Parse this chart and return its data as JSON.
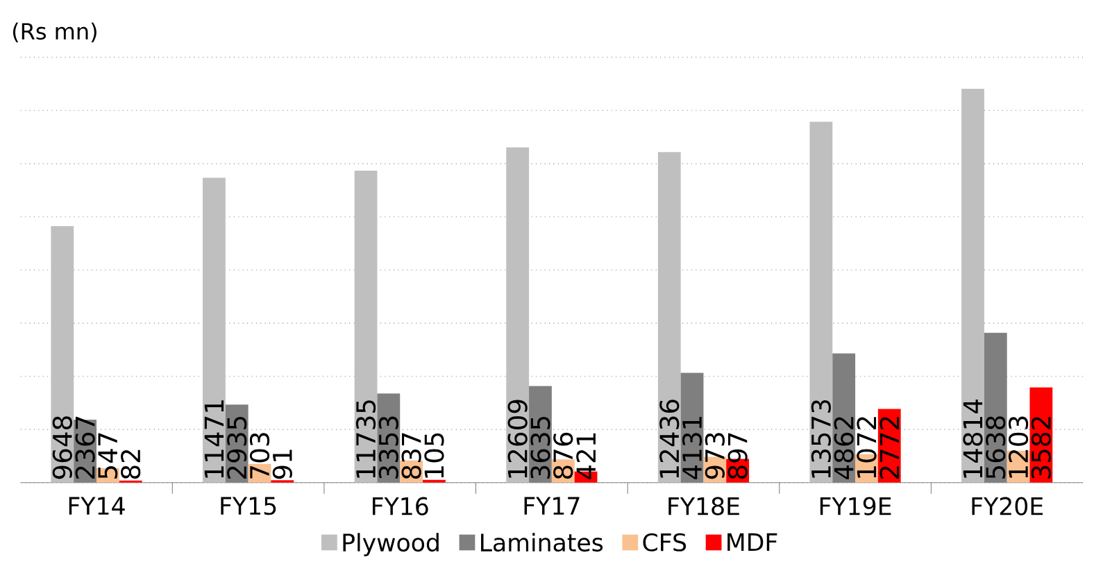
{
  "chart_data": {
    "type": "bar",
    "ylabel": "(Rs mn)",
    "categories": [
      "FY14",
      "FY15",
      "FY16",
      "FY17",
      "FY18E",
      "FY19E",
      "FY20E"
    ],
    "series": [
      {
        "name": "Plywood",
        "color": "#bfbfbf",
        "values": [
          9648,
          11471,
          11735,
          12609,
          12436,
          13573,
          14814
        ]
      },
      {
        "name": "Laminates",
        "color": "#7f7f7f",
        "values": [
          2367,
          2935,
          3353,
          3635,
          4131,
          4862,
          5638
        ]
      },
      {
        "name": "CFS",
        "color": "#fac090",
        "values": [
          547,
          703,
          837,
          876,
          973,
          1072,
          1203
        ]
      },
      {
        "name": "MDF",
        "color": "#ff0000",
        "values": [
          82,
          91,
          105,
          421,
          897,
          2772,
          3582
        ]
      }
    ],
    "tick_labels": "x",
    "grid": "y",
    "legend": "bottom",
    "data_labels": true
  }
}
